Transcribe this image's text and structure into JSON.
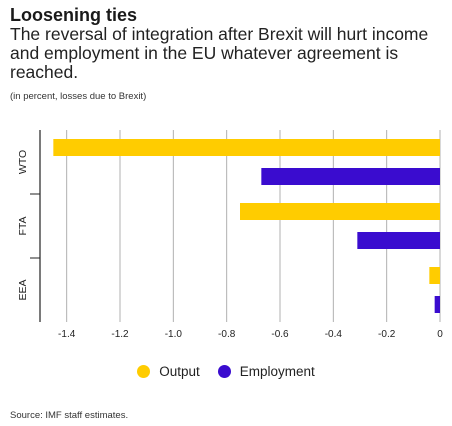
{
  "header": {
    "title": "Loosening ties",
    "subtitle": "The reversal of integration after Brexit will hurt income and employment in the EU whatever agreement is reached.",
    "note": "(in percent, losses due to Brexit)"
  },
  "source": "Source: IMF staff estimates.",
  "colors": {
    "output": "#ffcc00",
    "employment": "#3a0ccf",
    "grid": "#b0b0b0",
    "axis": "#222222"
  },
  "chart_data": {
    "type": "bar",
    "orientation": "horizontal",
    "categories": [
      "WTO",
      "FTA",
      "EEA"
    ],
    "series": [
      {
        "name": "Output",
        "values": [
          -1.45,
          -0.75,
          -0.04
        ]
      },
      {
        "name": "Employment",
        "values": [
          -0.67,
          -0.31,
          -0.02
        ]
      }
    ],
    "xlim": [
      -1.5,
      0
    ],
    "xticks": [
      -1.4,
      -1.2,
      -1.0,
      -0.8,
      -0.6,
      -0.4,
      -0.2,
      0
    ],
    "xtick_labels": [
      "-1.4",
      "-1.2",
      "-1.0",
      "-0.8",
      "-0.6",
      "-0.4",
      "-0.2",
      "0"
    ],
    "grid": true,
    "legend": "bottom-center"
  }
}
